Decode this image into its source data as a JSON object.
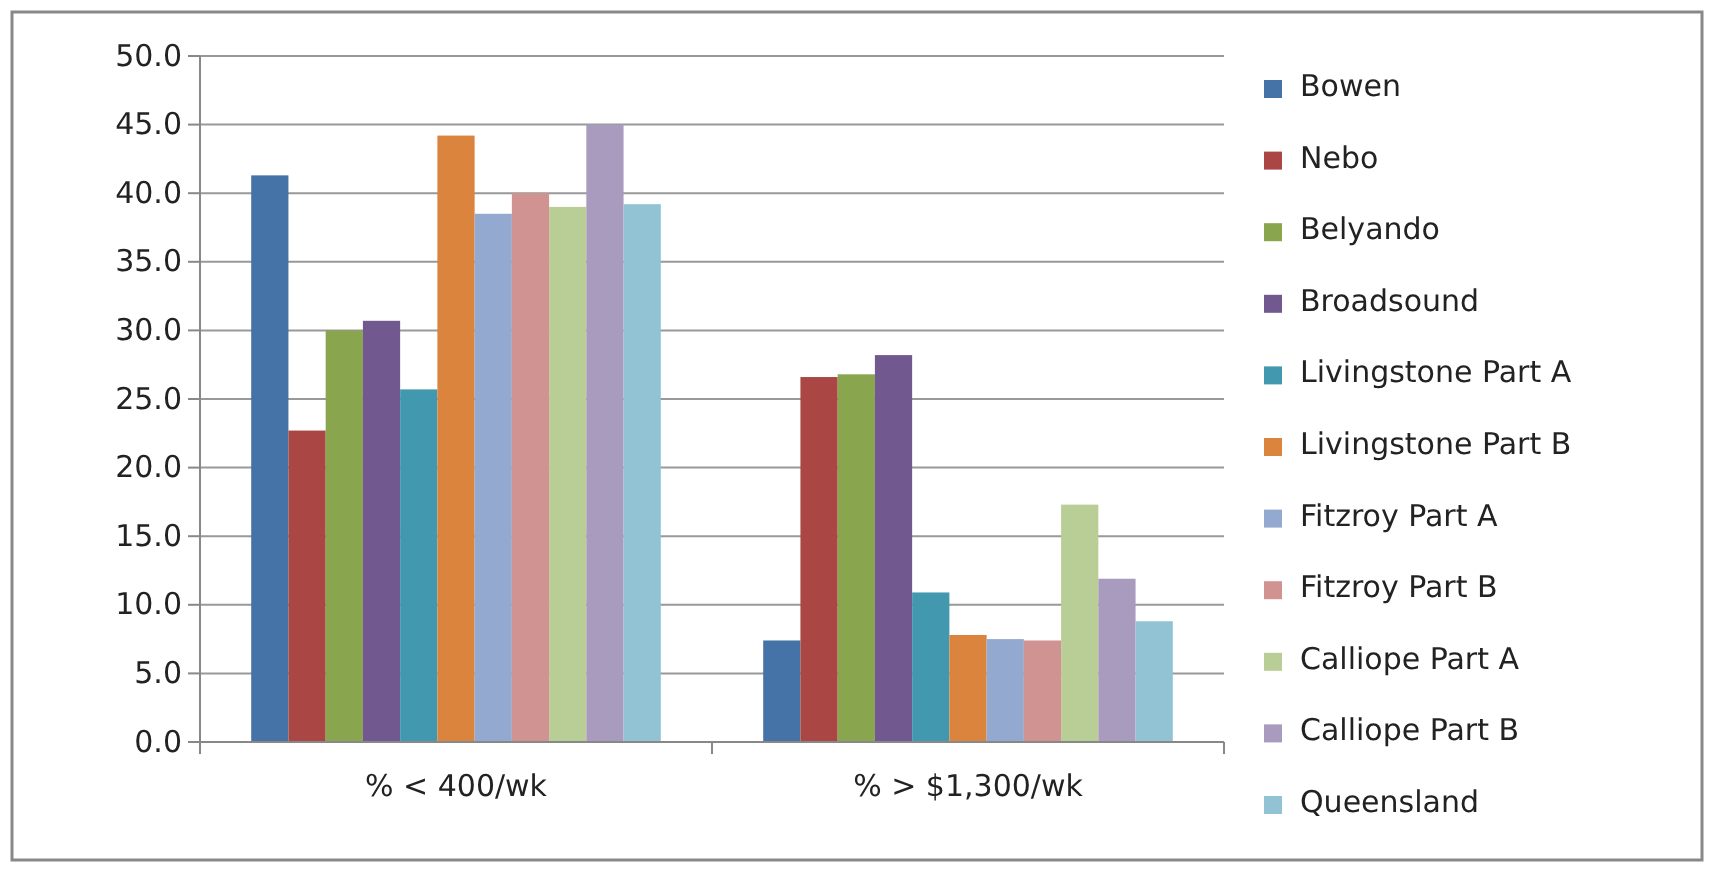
{
  "chart_data": {
    "type": "bar",
    "categories": [
      "% < 400/wk",
      "% > $1,300/wk"
    ],
    "series": [
      {
        "name": "Bowen",
        "color": "#4572a7",
        "values": [
          41.3,
          7.4
        ]
      },
      {
        "name": "Nebo",
        "color": "#aa4643",
        "values": [
          22.7,
          26.6
        ]
      },
      {
        "name": "Belyando",
        "color": "#89a54e",
        "values": [
          30.0,
          26.8
        ]
      },
      {
        "name": "Broadsound",
        "color": "#71588f",
        "values": [
          30.7,
          28.2
        ]
      },
      {
        "name": "Livingstone Part A",
        "color": "#4198af",
        "values": [
          25.7,
          10.9
        ]
      },
      {
        "name": "Livingstone Part B",
        "color": "#db843d",
        "values": [
          44.2,
          7.8
        ]
      },
      {
        "name": "Fitzroy Part A",
        "color": "#93a9cf",
        "values": [
          38.5,
          7.5
        ]
      },
      {
        "name": "Fitzroy Part B",
        "color": "#d19392",
        "values": [
          40.0,
          7.4
        ]
      },
      {
        "name": "Calliope Part A",
        "color": "#b9cd96",
        "values": [
          39.0,
          17.3
        ]
      },
      {
        "name": "Calliope Part B",
        "color": "#a99bbd",
        "values": [
          45.0,
          11.9
        ]
      },
      {
        "name": "Queensland",
        "color": "#92c3d4",
        "values": [
          39.2,
          8.8
        ]
      }
    ],
    "ylim": [
      0,
      50
    ],
    "yticks": [
      {
        "value": 0,
        "label": "0.0"
      },
      {
        "value": 5,
        "label": "5.0"
      },
      {
        "value": 10,
        "label": "10.0"
      },
      {
        "value": 15,
        "label": "15.0"
      },
      {
        "value": 20,
        "label": "20.0"
      },
      {
        "value": 25,
        "label": "25.0"
      },
      {
        "value": 30,
        "label": "30.0"
      },
      {
        "value": 35,
        "label": "35.0"
      },
      {
        "value": 40,
        "label": "40.0"
      },
      {
        "value": 45,
        "label": "45.0"
      },
      {
        "value": 50,
        "label": "50.0"
      }
    ],
    "grid": "y",
    "legend": "right"
  }
}
